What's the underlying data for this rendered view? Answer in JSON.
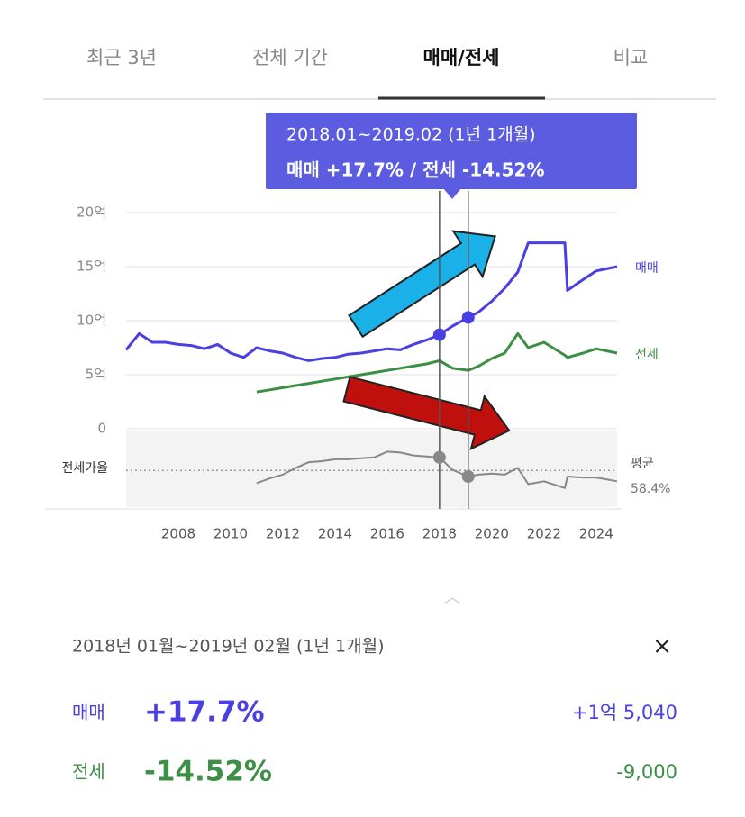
{
  "tabs": {
    "items": [
      "최근 3년",
      "전체 기간",
      "매매/전세",
      "비교"
    ],
    "active": 2
  },
  "chart_data": {
    "type": "line",
    "x": [
      2006.0,
      2006.5,
      2007,
      2007.5,
      2008,
      2008.5,
      2009,
      2009.5,
      2010,
      2010.5,
      2011,
      2011.5,
      2012,
      2012.5,
      2013,
      2013.5,
      2014,
      2014.5,
      2015,
      2015.5,
      2016,
      2016.5,
      2017,
      2017.5,
      2018.0,
      2018.5,
      2019.1,
      2019.5,
      2020,
      2020.5,
      2021,
      2021.4,
      2022,
      2022.8,
      2022.9,
      2023.5,
      2024,
      2024.8
    ],
    "xlim": [
      2006.0,
      2024.8
    ],
    "xticks": [
      2008,
      2010,
      2012,
      2014,
      2016,
      2018,
      2020,
      2022,
      2024
    ],
    "ylim": [
      0,
      20
    ],
    "yticks": [
      0,
      {
        "value": 5,
        "label": "5억"
      },
      {
        "value": 10,
        "label": "10억"
      },
      {
        "value": 15,
        "label": "15억"
      },
      {
        "value": 20,
        "label": "20억"
      }
    ],
    "y2lim": [
      20,
      100
    ],
    "grid": true,
    "series": [
      {
        "name": "매매",
        "color": "#4a3fe0",
        "values": [
          7.3,
          8.8,
          8.0,
          8.0,
          7.8,
          7.7,
          7.4,
          7.8,
          7.0,
          6.6,
          7.5,
          7.2,
          7.0,
          6.6,
          6.3,
          6.5,
          6.6,
          6.9,
          7.0,
          7.2,
          7.4,
          7.3,
          7.8,
          8.2,
          8.7,
          9.5,
          10.3,
          10.8,
          11.8,
          13.0,
          14.5,
          17.2,
          17.2,
          17.2,
          12.8,
          13.8,
          14.6,
          15.0
        ]
      },
      {
        "name": "전세",
        "color": "#3d8f45",
        "values": [
          null,
          null,
          null,
          null,
          null,
          null,
          null,
          null,
          null,
          null,
          3.4,
          3.6,
          3.8,
          4.0,
          4.2,
          4.4,
          4.6,
          4.8,
          5.0,
          5.2,
          5.4,
          5.6,
          5.8,
          6.0,
          6.3,
          5.6,
          5.4,
          5.8,
          6.5,
          7.0,
          8.8,
          7.5,
          8.0,
          6.8,
          6.6,
          7.0,
          7.4,
          7.0
        ]
      },
      {
        "name": "전세가율",
        "color": "#888888",
        "axis": "y2",
        "values": [
          null,
          null,
          null,
          null,
          null,
          null,
          null,
          null,
          null,
          null,
          45,
          50,
          54,
          61,
          67,
          68,
          70,
          70,
          71,
          72,
          78,
          77,
          74,
          73,
          72,
          59,
          52,
          54,
          55,
          54,
          61,
          44,
          47,
          40,
          52,
          51,
          51,
          47
        ]
      }
    ],
    "average": {
      "name": "평균",
      "value": 58.4,
      "label": "58.4%"
    },
    "selection_x": [
      2018.0,
      2019.1
    ]
  },
  "tooltip": {
    "period": "2018.01~2019.02 (1년 1개월)",
    "text": "매매 +17.7%  /  전세 -14.52%"
  },
  "summary": {
    "period": "2018년 01월~2019년 02월 (1년 1개월)",
    "rows": [
      {
        "name": "매매",
        "change": "+17.7%",
        "amount": "+1억 5,040"
      },
      {
        "name": "전세",
        "change": "-14.52%",
        "amount": "-9,000"
      }
    ]
  }
}
